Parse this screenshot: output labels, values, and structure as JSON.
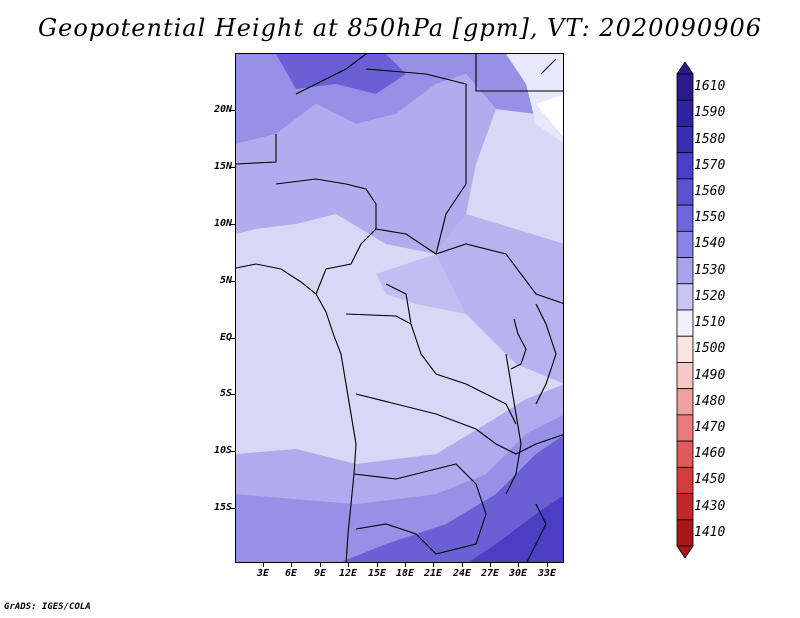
{
  "title": "Geopotential Height at 850hPa [gpm], VT: 2020090906",
  "credit": "GrADS: IGES/COLA",
  "map": {
    "lat_ticks": [
      "20N",
      "15N",
      "10N",
      "5N",
      "EQ",
      "5S",
      "10S",
      "15S"
    ],
    "lon_ticks": [
      "3E",
      "6E",
      "9E",
      "12E",
      "15E",
      "18E",
      "21E",
      "24E",
      "27E",
      "30E",
      "33E"
    ]
  },
  "legend": {
    "levels": [
      "1610",
      "1590",
      "1580",
      "1570",
      "1560",
      "1550",
      "1540",
      "1530",
      "1520",
      "1510",
      "1500",
      "1490",
      "1480",
      "1470",
      "1460",
      "1450",
      "1430",
      "1410"
    ],
    "colors": [
      "#2a1a8c",
      "#2e229e",
      "#3a2eb0",
      "#4a3ec4",
      "#5c52d0",
      "#7066dc",
      "#8a82e4",
      "#a8a2ec",
      "#c8c4f4",
      "#f2f0fc",
      "#fce4e4",
      "#f8c8c8",
      "#f0a0a0",
      "#e87c7c",
      "#e05a5a",
      "#d43c3c",
      "#c02828",
      "#a81818"
    ]
  }
}
